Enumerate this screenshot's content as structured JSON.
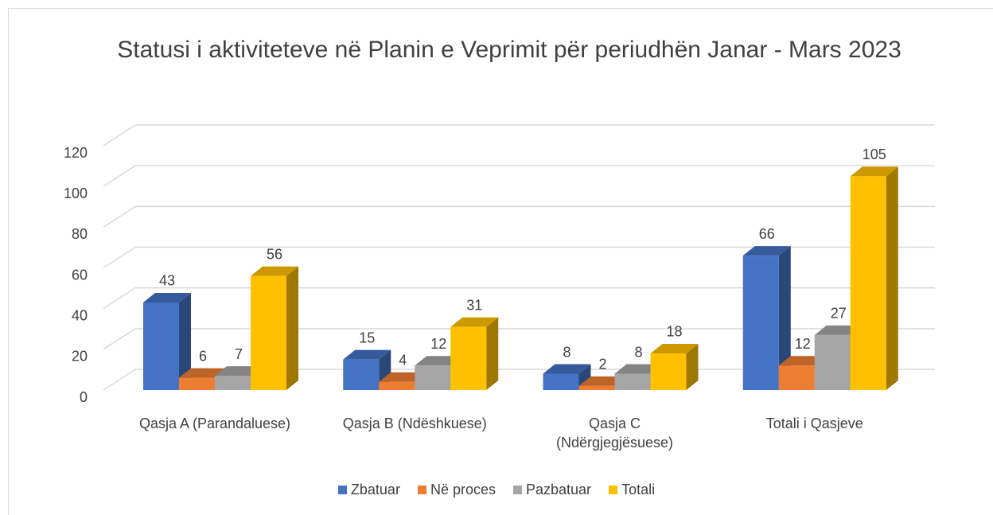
{
  "chart_data": {
    "type": "bar3d",
    "title": "Statusi i aktiviteteve në Planin e Veprimit për periudhën Janar - Mars 2023",
    "categories": [
      "Qasja A (Parandaluese)",
      "Qasja B (Ndëshkuese)",
      "Qasja C (Ndërgjegjësuese)",
      "Totali i Qasjeve"
    ],
    "series": [
      {
        "name": "Zbatuar",
        "color": "#4472c4",
        "values": [
          43,
          15,
          8,
          66
        ]
      },
      {
        "name": "Në proces",
        "color": "#ed7d31",
        "values": [
          6,
          4,
          2,
          12
        ]
      },
      {
        "name": "Pazbatuar",
        "color": "#a5a5a5",
        "values": [
          7,
          12,
          8,
          27
        ]
      },
      {
        "name": "Totali",
        "color": "#ffc000",
        "values": [
          56,
          31,
          18,
          105
        ]
      }
    ],
    "ylim": [
      0,
      120
    ],
    "yticks": [
      0,
      20,
      40,
      60,
      80,
      100,
      120
    ],
    "grid": true,
    "legend": "bottom"
  }
}
